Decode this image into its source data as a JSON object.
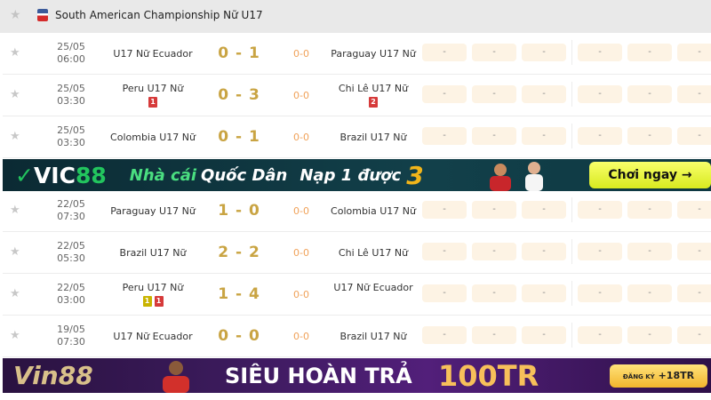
{
  "league": {
    "name": "South American Championship Nữ U17",
    "flag_icon": "league-flag-icon"
  },
  "matches": [
    {
      "date": "25/05",
      "time": "06:00",
      "home": "U17 Nữ Ecuador",
      "score": "0 - 1",
      "ht": "0-0",
      "away": "Paraguay U17 Nữ",
      "home_cards": [],
      "away_cards": [],
      "odds": [
        "-",
        "-",
        "-",
        "-",
        "-",
        "-"
      ]
    },
    {
      "date": "25/05",
      "time": "03:30",
      "home": "Peru U17 Nữ",
      "score": "0 - 3",
      "ht": "0-0",
      "away": "Chi Lê U17 Nữ",
      "home_cards": [
        {
          "type": "red",
          "count": "1"
        }
      ],
      "away_cards": [
        {
          "type": "red",
          "count": "2"
        }
      ],
      "odds": [
        "-",
        "-",
        "-",
        "-",
        "-",
        "-"
      ]
    },
    {
      "date": "25/05",
      "time": "03:30",
      "home": "Colombia U17 Nữ",
      "score": "0 - 1",
      "ht": "0-0",
      "away": "Brazil U17 Nữ",
      "home_cards": [],
      "away_cards": [],
      "odds": [
        "-",
        "-",
        "-",
        "-",
        "-",
        "-"
      ]
    },
    {
      "date": "22/05",
      "time": "07:30",
      "home": "Paraguay U17 Nữ",
      "score": "1 - 0",
      "ht": "0-0",
      "away": "Colombia U17 Nữ",
      "home_cards": [],
      "away_cards": [],
      "odds": [
        "-",
        "-",
        "-",
        "-",
        "-",
        "-"
      ]
    },
    {
      "date": "22/05",
      "time": "05:30",
      "home": "Brazil U17 Nữ",
      "score": "2 - 2",
      "ht": "0-0",
      "away": "Chi Lê U17 Nữ",
      "home_cards": [],
      "away_cards": [],
      "odds": [
        "-",
        "-",
        "-",
        "-",
        "-",
        "-"
      ]
    },
    {
      "date": "22/05",
      "time": "03:00",
      "home": "Peru U17 Nữ",
      "score": "1 - 4",
      "ht": "0-0",
      "away": "U17 Nữ Ecuador",
      "home_cards": [
        {
          "type": "yellow",
          "count": "1"
        },
        {
          "type": "red",
          "count": "1"
        }
      ],
      "away_cards": [],
      "odds": [
        "-",
        "-",
        "-",
        "-",
        "-",
        "-"
      ]
    },
    {
      "date": "19/05",
      "time": "07:30",
      "home": "U17 Nữ Ecuador",
      "score": "0 - 0",
      "ht": "0-0",
      "away": "Brazil U17 Nữ",
      "home_cards": [],
      "away_cards": [],
      "odds": [
        "-",
        "-",
        "-",
        "-",
        "-",
        "-"
      ]
    }
  ],
  "banners": {
    "vic88": {
      "logo_a": "VIC",
      "logo_b": "88",
      "slogan_a": "Nhà cái",
      "slogan_b": "Quốc Dân",
      "promo": "Nạp 1 được",
      "promo_num": "3",
      "cta": "Chơi ngay →"
    },
    "vin88": {
      "logo": "Vin88",
      "headline": "SIÊU HOÀN TRẢ",
      "amount": "100TR",
      "cta_small": "ĐĂNG KÝ",
      "cta": "+18TR"
    }
  },
  "colors": {
    "score": "#c9a443",
    "halftime": "#f0a25a",
    "red_card": "#d63a3a",
    "yellow_card": "#c9b400",
    "odds_bg": "#fdf3e4"
  }
}
